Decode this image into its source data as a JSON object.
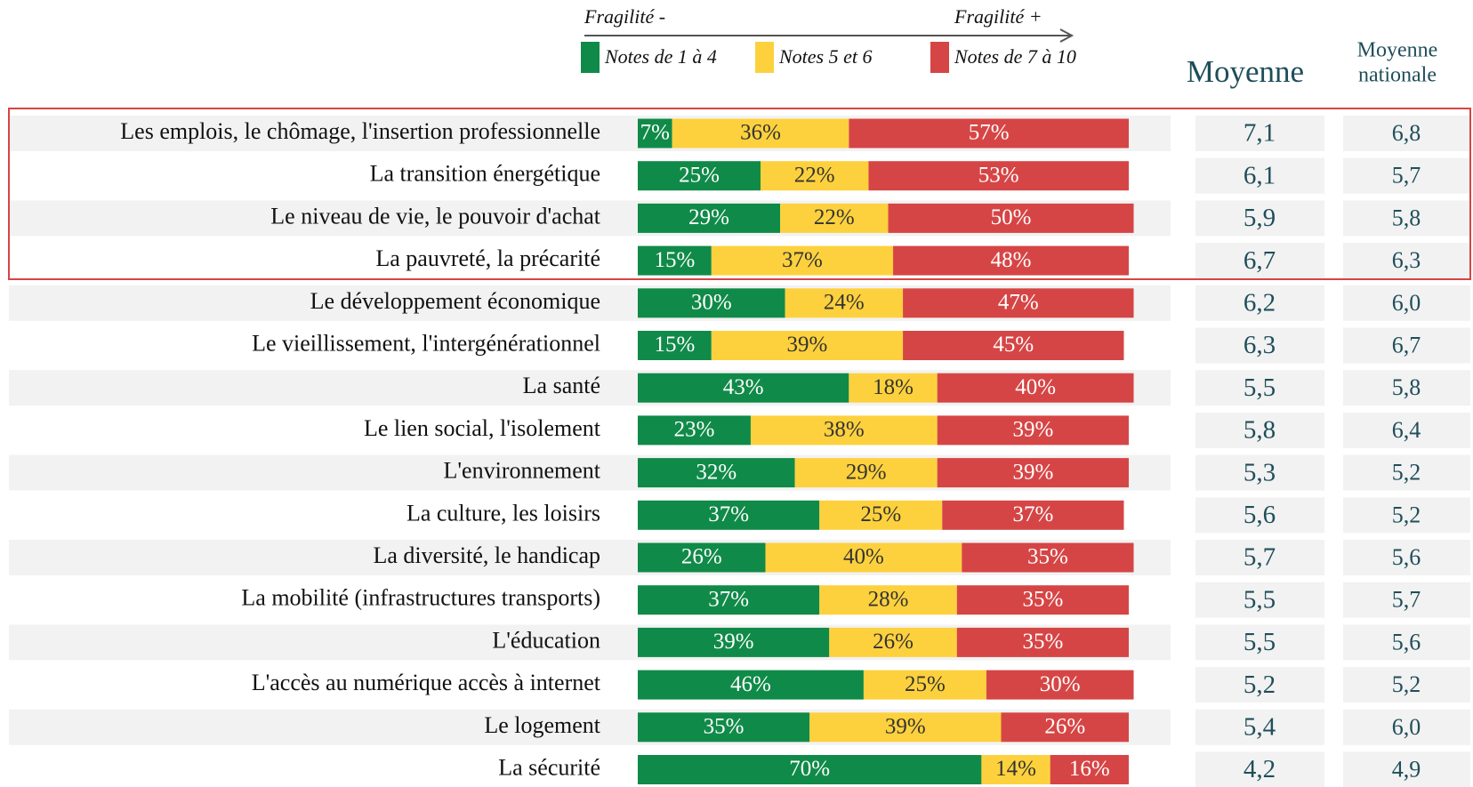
{
  "chart_data": {
    "type": "stacked-bar",
    "header": {
      "left": "Fragilité -",
      "right": "Fragilité +"
    },
    "categories": [
      "Les emplois, le chômage, l'insertion professionnelle",
      "La transition énergétique",
      "Le niveau de vie, le pouvoir d'achat",
      "La pauvreté, la précarité",
      "Le développement économique",
      "Le vieillissement, l'intergénérationnel",
      "La santé",
      "Le lien social, l'isolement",
      "L'environnement",
      "La culture, les loisirs",
      "La diversité, le handicap",
      "La mobilité (infrastructures transports)",
      "L'éducation",
      "L'accès au numérique accès à internet",
      "Le logement",
      "La sécurité"
    ],
    "xlim": [
      0,
      100
    ],
    "series": [
      {
        "name": "Notes de 1 à 4",
        "color": "#108a48",
        "values": [
          7,
          25,
          29,
          15,
          30,
          15,
          43,
          23,
          32,
          37,
          26,
          37,
          39,
          46,
          35,
          70
        ],
        "value_labels": [
          "7%",
          "25%",
          "29%",
          "15%",
          "30%",
          "15%",
          "43%",
          "23%",
          "32%",
          "37%",
          "26%",
          "37%",
          "39%",
          "46%",
          "35%",
          "70%"
        ]
      },
      {
        "name": "Notes 5 et 6",
        "color": "#fdd13d",
        "values": [
          36,
          22,
          22,
          37,
          24,
          39,
          18,
          38,
          29,
          25,
          40,
          28,
          26,
          25,
          39,
          14
        ],
        "value_labels": [
          "36%",
          "22%",
          "22%",
          "37%",
          "24%",
          "39%",
          "18%",
          "38%",
          "29%",
          "25%",
          "40%",
          "28%",
          "26%",
          "25%",
          "39%",
          "14%"
        ]
      },
      {
        "name": "Notes de 7 à 10",
        "color": "#d64545",
        "values": [
          57,
          53,
          50,
          48,
          47,
          45,
          40,
          39,
          39,
          37,
          35,
          35,
          35,
          30,
          26,
          16
        ],
        "value_labels": [
          "57%",
          "53%",
          "50%",
          "48%",
          "47%",
          "45%",
          "40%",
          "39%",
          "39%",
          "37%",
          "35%",
          "35%",
          "35%",
          "30%",
          "26%",
          "16%"
        ]
      }
    ],
    "columns": [
      {
        "label": "Moyenne",
        "values": [
          7.1,
          6.1,
          5.9,
          6.7,
          6.2,
          6.3,
          5.5,
          5.8,
          5.3,
          5.6,
          5.7,
          5.5,
          5.5,
          5.2,
          5.4,
          4.2
        ],
        "value_labels": [
          "7,1",
          "6,1",
          "5,9",
          "6,7",
          "6,2",
          "6,3",
          "5,5",
          "5,8",
          "5,3",
          "5,6",
          "5,7",
          "5,5",
          "5,5",
          "5,2",
          "5,4",
          "4,2"
        ]
      },
      {
        "label": [
          "Moyenne",
          "nationale"
        ],
        "values": [
          6.8,
          5.7,
          5.8,
          6.3,
          6.0,
          6.7,
          5.8,
          6.4,
          5.2,
          5.2,
          5.6,
          5.7,
          5.6,
          5.2,
          6.0,
          4.9
        ],
        "value_labels": [
          "6,8",
          "5,7",
          "5,8",
          "6,3",
          "6,0",
          "6,7",
          "5,8",
          "6,4",
          "5,2",
          "5,2",
          "5,6",
          "5,7",
          "5,6",
          "5,2",
          "6,0",
          "4,9"
        ]
      }
    ]
  }
}
